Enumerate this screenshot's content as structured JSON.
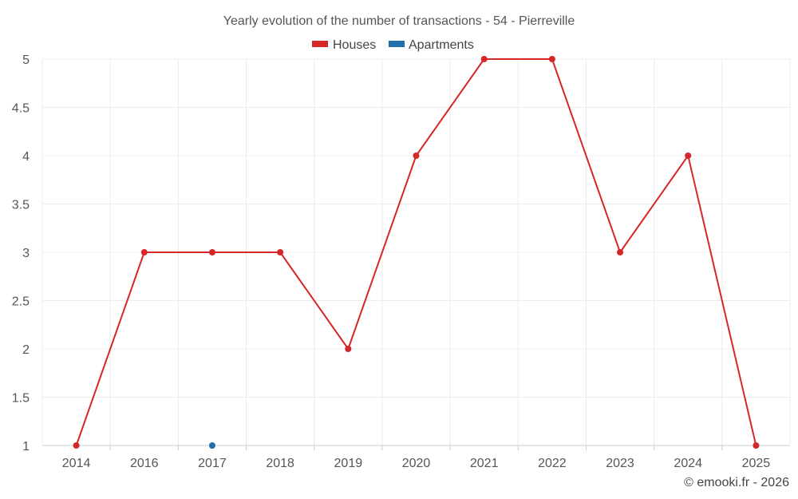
{
  "chart_data": {
    "type": "line",
    "title": "Yearly evolution of the number of transactions - 54 - Pierreville",
    "categories": [
      "2014",
      "2016",
      "2017",
      "2018",
      "2019",
      "2020",
      "2021",
      "2022",
      "2023",
      "2024",
      "2025"
    ],
    "series": [
      {
        "name": "Houses",
        "color": "#d62728",
        "values": [
          1,
          3,
          3,
          3,
          2,
          4,
          5,
          5,
          3,
          4,
          1
        ]
      },
      {
        "name": "Apartments",
        "color": "#1f6fa8",
        "values": [
          null,
          null,
          1,
          null,
          null,
          null,
          null,
          null,
          null,
          null,
          null
        ]
      }
    ],
    "yticks": [
      "1",
      "1.5",
      "2",
      "2.5",
      "3",
      "3.5",
      "4",
      "4.5",
      "5"
    ],
    "ylim": [
      1,
      5
    ],
    "xlabel": "",
    "ylabel": "",
    "grid": true,
    "legend": "top-center"
  },
  "credit": "© emooki.fr - 2026"
}
